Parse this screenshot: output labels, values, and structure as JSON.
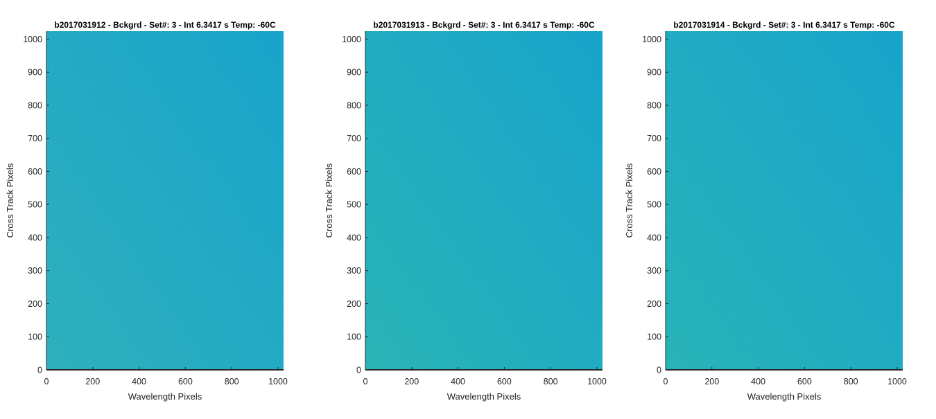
{
  "chart_data": [
    {
      "type": "heatmap",
      "title": "b2017031912 - Bckgrd - Set#: 3 - Int 6.3417 s Temp: -60C",
      "xlabel": "Wavelength Pixels",
      "ylabel": "Cross Track Pixels",
      "xlim": [
        0,
        1024
      ],
      "ylim": [
        0,
        1024
      ],
      "xticks": [
        0,
        200,
        400,
        600,
        800,
        1000
      ],
      "yticks": [
        0,
        100,
        200,
        300,
        400,
        500,
        600,
        700,
        800,
        900,
        1000
      ],
      "grid": false,
      "colors": {
        "left": "#27a8b7",
        "right": "#0d9ac9"
      }
    },
    {
      "type": "heatmap",
      "title": "b2017031913 - Bckgrd - Set#: 3 - Int 6.3417 s Temp: -60C",
      "xlabel": "Wavelength Pixels",
      "ylabel": "Cross Track Pixels",
      "xlim": [
        0,
        1024
      ],
      "ylim": [
        0,
        1024
      ],
      "xticks": [
        0,
        200,
        400,
        600,
        800,
        1000
      ],
      "yticks": [
        0,
        100,
        200,
        300,
        400,
        500,
        600,
        700,
        800,
        900,
        1000
      ],
      "grid": false,
      "colors": {
        "left": "#21adb0",
        "right": "#0d9ac9"
      }
    },
    {
      "type": "heatmap",
      "title": "b2017031914 - Bckgrd - Set#: 3 - Int 6.3417 s Temp: -60C",
      "xlabel": "Wavelength Pixels",
      "ylabel": "Cross Track Pixels",
      "xlim": [
        0,
        1024
      ],
      "ylim": [
        0,
        1024
      ],
      "xticks": [
        0,
        200,
        400,
        600,
        800,
        1000
      ],
      "yticks": [
        0,
        100,
        200,
        300,
        400,
        500,
        600,
        700,
        800,
        900,
        1000
      ],
      "grid": false,
      "colors": {
        "left": "#20acb2",
        "right": "#0d9ac9"
      }
    }
  ]
}
